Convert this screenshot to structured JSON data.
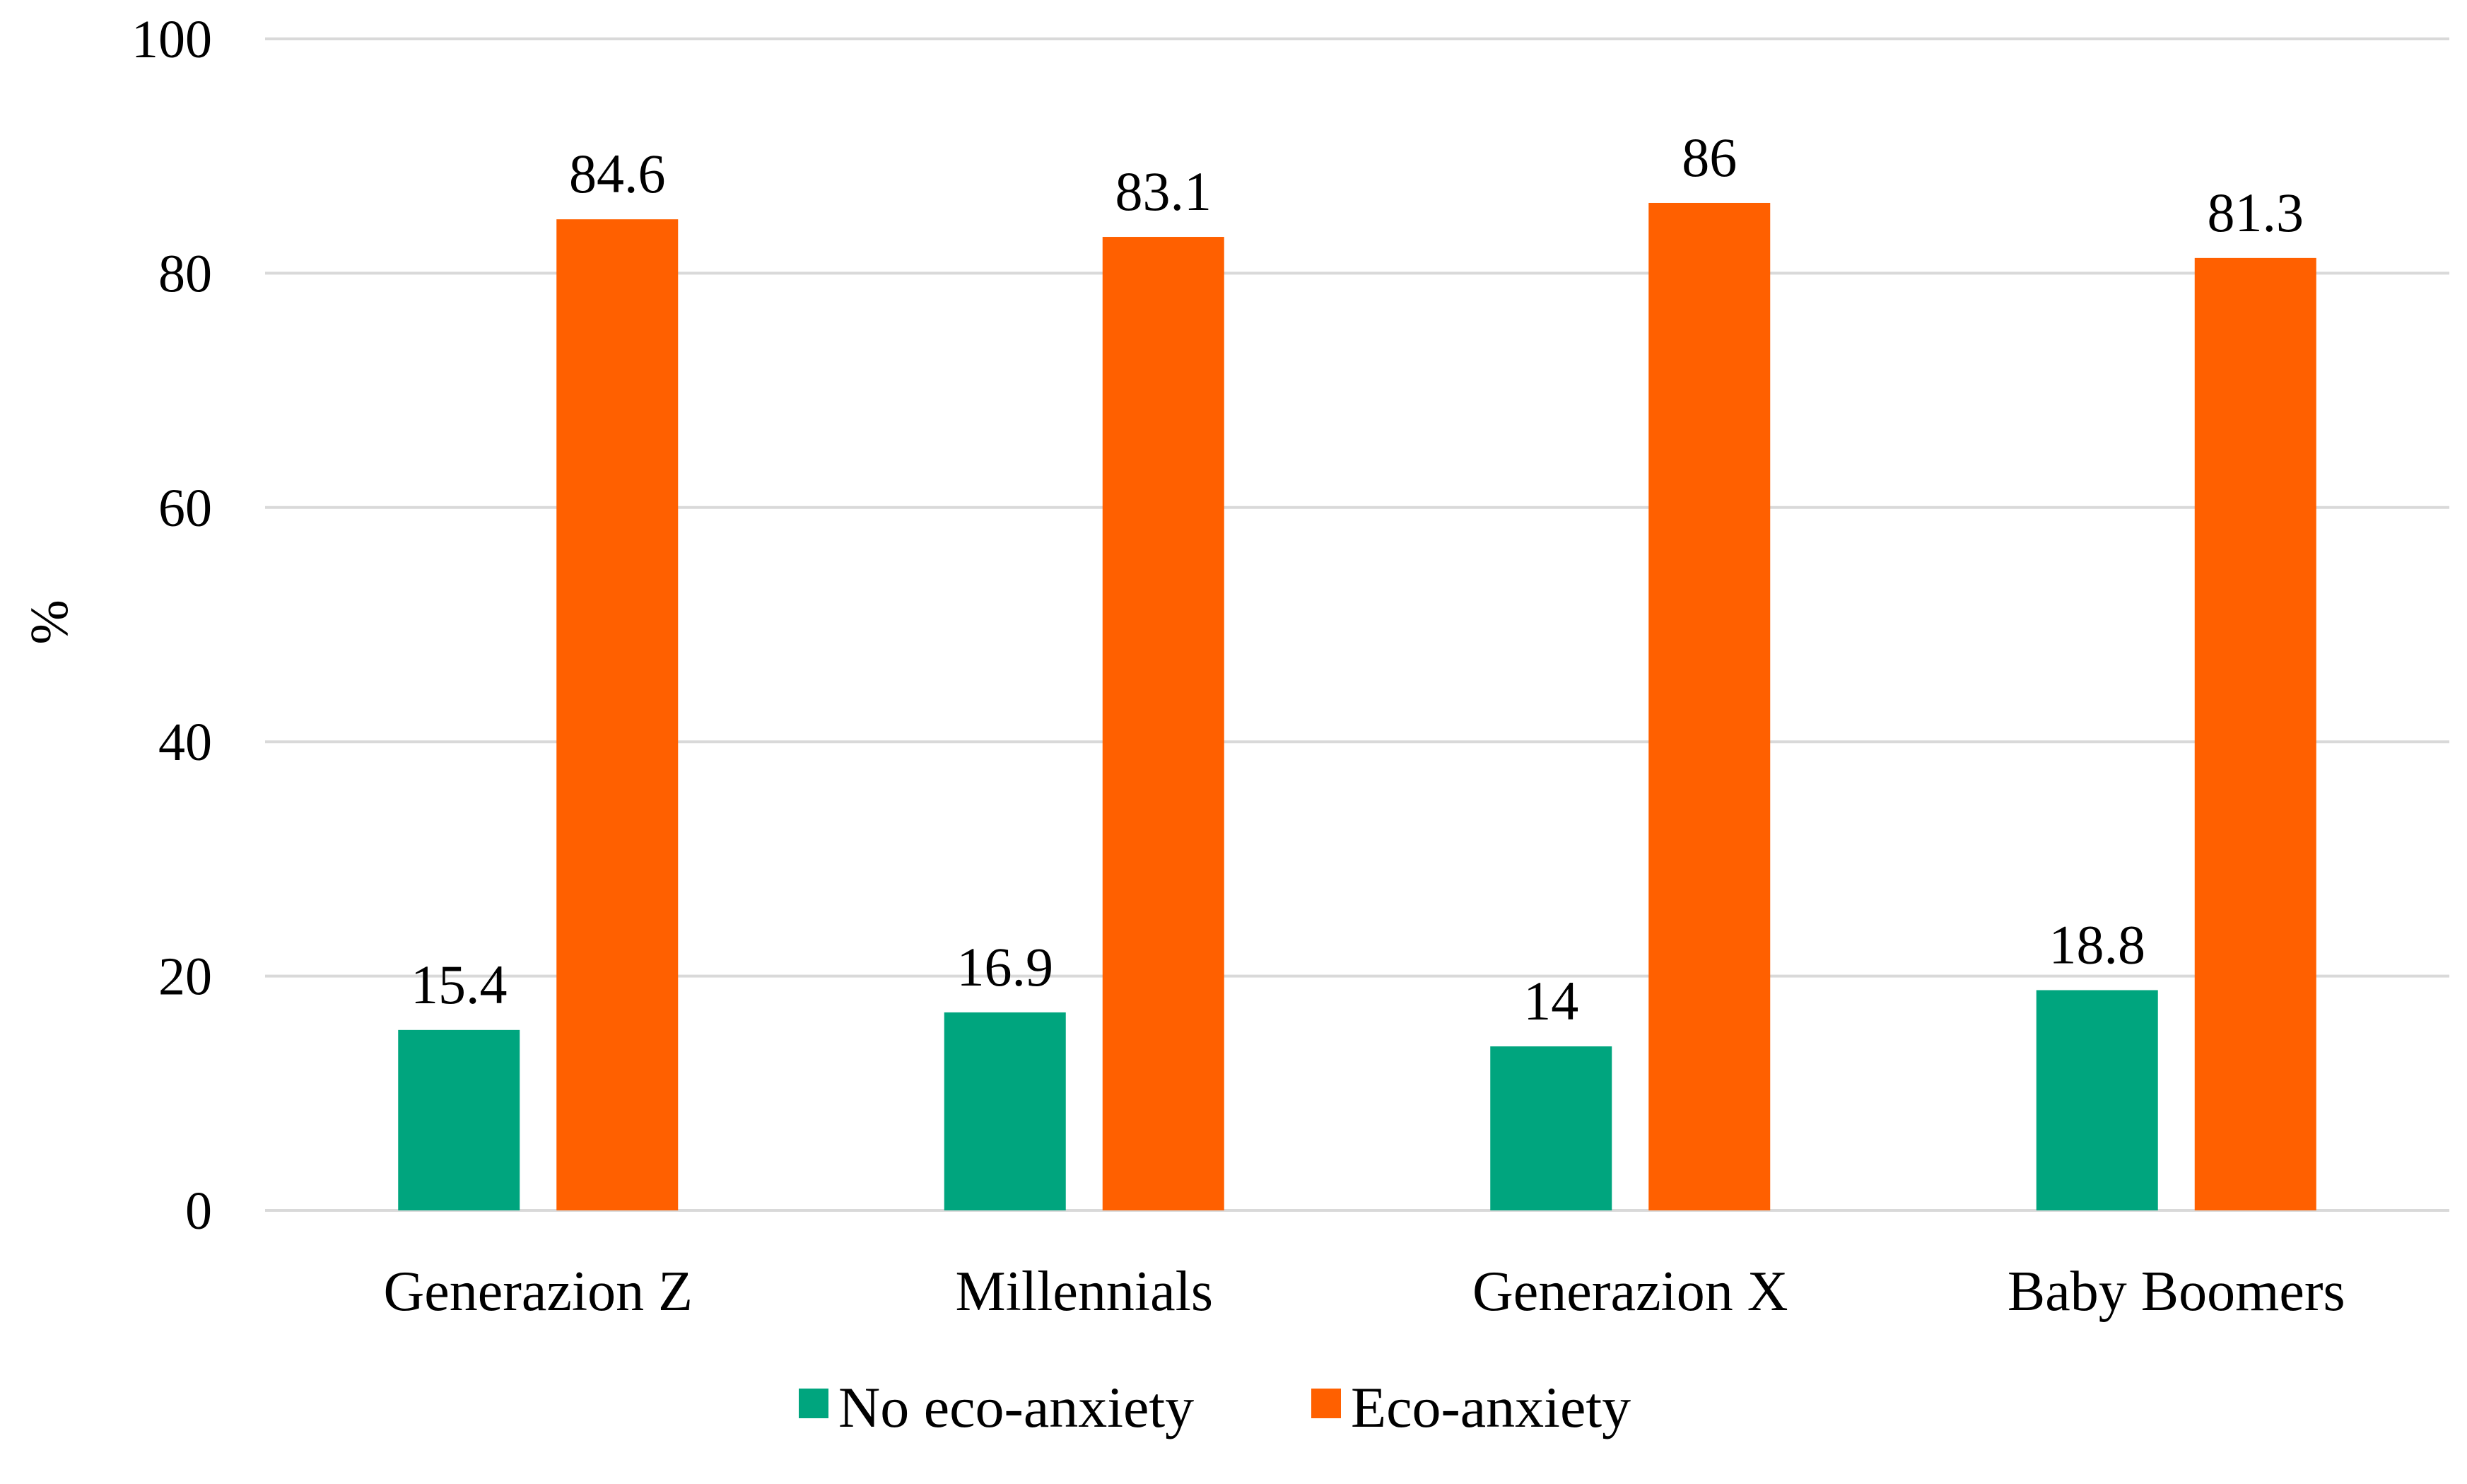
{
  "chart_data": {
    "type": "bar",
    "title": "",
    "xlabel": "",
    "ylabel": "%",
    "ylim": [
      0,
      100
    ],
    "yticks": [
      "0",
      "20",
      "40",
      "60",
      "80",
      "100"
    ],
    "categories": [
      "Generazion Z",
      "Millennials",
      "Generazion X",
      "Baby Boomers"
    ],
    "series": [
      {
        "name": "No eco-anxiety",
        "color": "#00A57E",
        "values": [
          15.4,
          16.9,
          14,
          18.8
        ],
        "labels": [
          "15.4",
          "16.9",
          "14",
          "18.8"
        ]
      },
      {
        "name": "Eco-anxiety",
        "color": "#FF6000",
        "values": [
          84.6,
          83.1,
          86,
          81.3
        ],
        "labels": [
          "84.6",
          "83.1",
          "86",
          "81.3"
        ]
      }
    ],
    "grid": true,
    "legend_position": "bottom"
  }
}
